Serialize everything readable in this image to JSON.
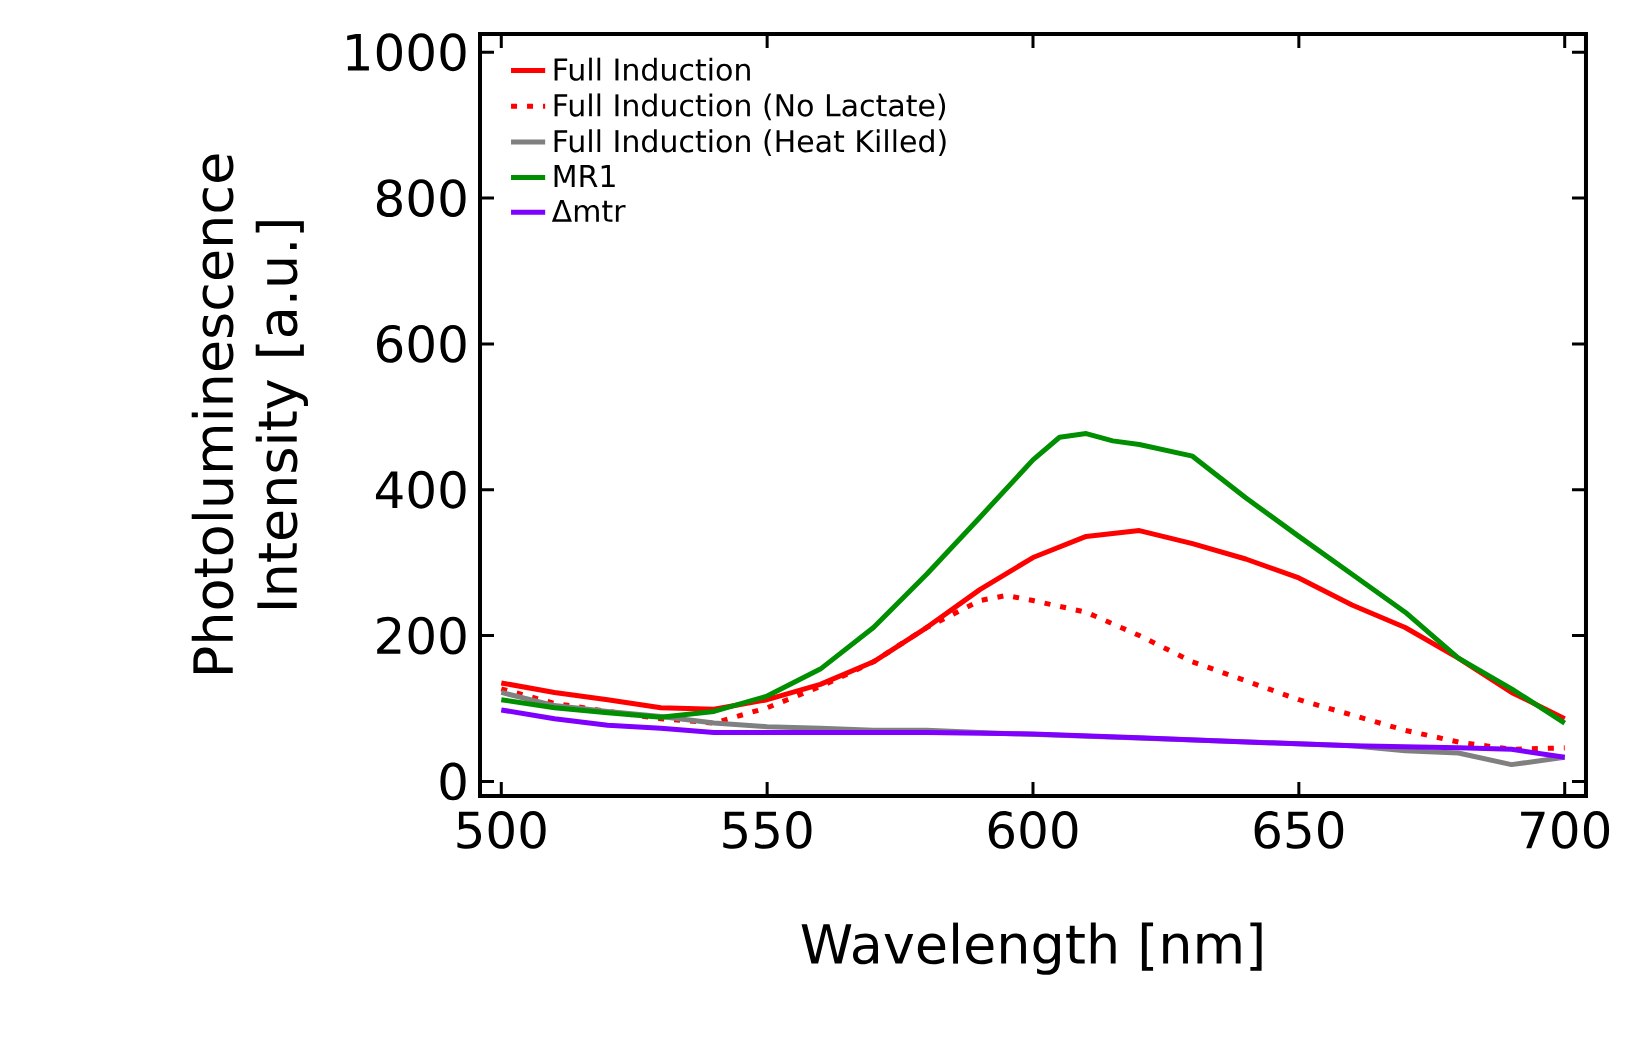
{
  "chart_data": {
    "type": "line",
    "xlabel": "Wavelength [nm]",
    "ylabel": "Photoluminescence Intensity [a.u.]",
    "xlim": [
      496,
      704
    ],
    "ylim": [
      -20,
      1025
    ],
    "xticks": [
      500,
      550,
      600,
      650,
      700
    ],
    "yticks": [
      0,
      200,
      400,
      600,
      800,
      1000
    ],
    "legend": "top left",
    "series": [
      {
        "name": "Full Induction",
        "color": "#ff0000",
        "line_style": "solid",
        "x": [
          500,
          510,
          520,
          530,
          540,
          550,
          560,
          570,
          580,
          590,
          600,
          610,
          620,
          630,
          640,
          650,
          660,
          670,
          680,
          690,
          700
        ],
        "values": [
          135,
          122,
          112,
          101,
          99,
          112,
          133,
          164,
          211,
          263,
          307,
          336,
          344,
          326,
          305,
          279,
          242,
          211,
          169,
          122,
          86
        ]
      },
      {
        "name": "Full Induction (No Lactate)",
        "color": "#ff0000",
        "line_style": "dotted",
        "x": [
          500,
          510,
          520,
          530,
          540,
          550,
          560,
          570,
          580,
          590,
          595,
          600,
          610,
          620,
          630,
          640,
          650,
          660,
          670,
          680,
          690,
          700
        ],
        "values": [
          127,
          107,
          96,
          86,
          80,
          101,
          130,
          164,
          211,
          248,
          255,
          248,
          232,
          200,
          164,
          138,
          112,
          91,
          70,
          54,
          44,
          46
        ]
      },
      {
        "name": "Full Induction (Heat Killed)",
        "color": "#808080",
        "line_style": "solid",
        "x": [
          500,
          510,
          520,
          530,
          540,
          550,
          560,
          570,
          580,
          590,
          600,
          620,
          640,
          660,
          670,
          680,
          690,
          700
        ],
        "values": [
          122,
          104,
          96,
          89,
          80,
          75,
          73,
          70,
          70,
          67,
          null,
          null,
          null,
          49,
          42,
          39,
          23,
          33
        ]
      },
      {
        "name": "MR1",
        "color": "#008f00",
        "line_style": "solid",
        "x": [
          500,
          510,
          520,
          530,
          540,
          550,
          560,
          570,
          580,
          590,
          600,
          605,
          610,
          615,
          620,
          630,
          640,
          650,
          660,
          670,
          680,
          690,
          700
        ],
        "values": [
          112,
          101,
          94,
          88,
          96,
          117,
          154,
          211,
          284,
          362,
          441,
          472,
          477,
          467,
          462,
          446,
          389,
          336,
          284,
          232,
          169,
          127,
          80
        ]
      },
      {
        "name": "Δmtr",
        "color": "#7f00ff",
        "line_style": "solid",
        "x": [
          500,
          510,
          520,
          530,
          540,
          550,
          560,
          580,
          600,
          620,
          640,
          660,
          680,
          690,
          700
        ],
        "values": [
          98,
          86,
          77,
          73,
          67,
          67,
          67,
          67,
          65,
          60,
          54,
          49,
          46,
          44,
          33
        ]
      }
    ]
  }
}
